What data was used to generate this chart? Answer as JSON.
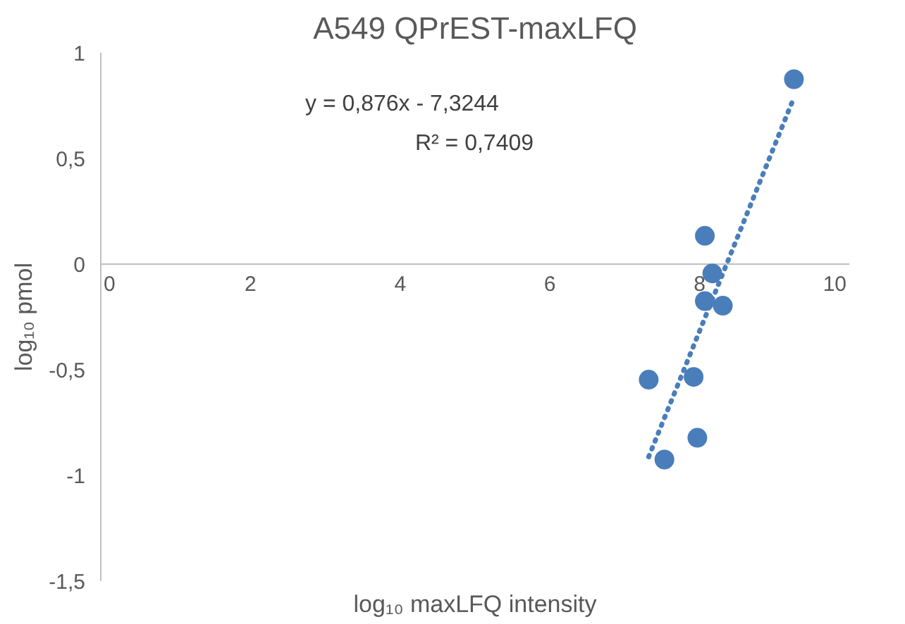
{
  "chart_data": {
    "type": "scatter",
    "title": "A549 QPrEST-maxLFQ",
    "xlabel": "log₁₀ maxLFQ intensity",
    "ylabel": "log₁₀ pmol",
    "annotations": [
      "y = 0,876x - 7,3244",
      "R² = 0,7409"
    ],
    "xlim": [
      0,
      10
    ],
    "xticks": [
      0,
      2,
      4,
      6,
      8,
      10
    ],
    "ylim": [
      -1.5,
      1
    ],
    "yticks": [
      {
        "value": -1.5,
        "label": "-1,5"
      },
      {
        "value": -1,
        "label": "-1"
      },
      {
        "value": -0.5,
        "label": "-0,5"
      },
      {
        "value": 0,
        "label": "0"
      },
      {
        "value": 0.5,
        "label": "0,5"
      },
      {
        "value": 1,
        "label": "1"
      }
    ],
    "grid": false,
    "marker": "circle",
    "series": [
      {
        "color": "#4a7ebb",
        "x": [
          9.26,
          8.07,
          8.17,
          8.07,
          8.31,
          7.32,
          7.92,
          7.97,
          7.53
        ],
        "values": [
          0.875,
          0.134,
          -0.044,
          -0.175,
          -0.197,
          -0.547,
          -0.534,
          -0.822,
          -0.925
        ]
      },
      {
        "type": "line",
        "color": "#4a7ebb",
        "line_style": "dotted",
        "marker": "none",
        "x": [
          7.32,
          9.26
        ],
        "values": [
          -0.912,
          0.788
        ]
      }
    ]
  }
}
